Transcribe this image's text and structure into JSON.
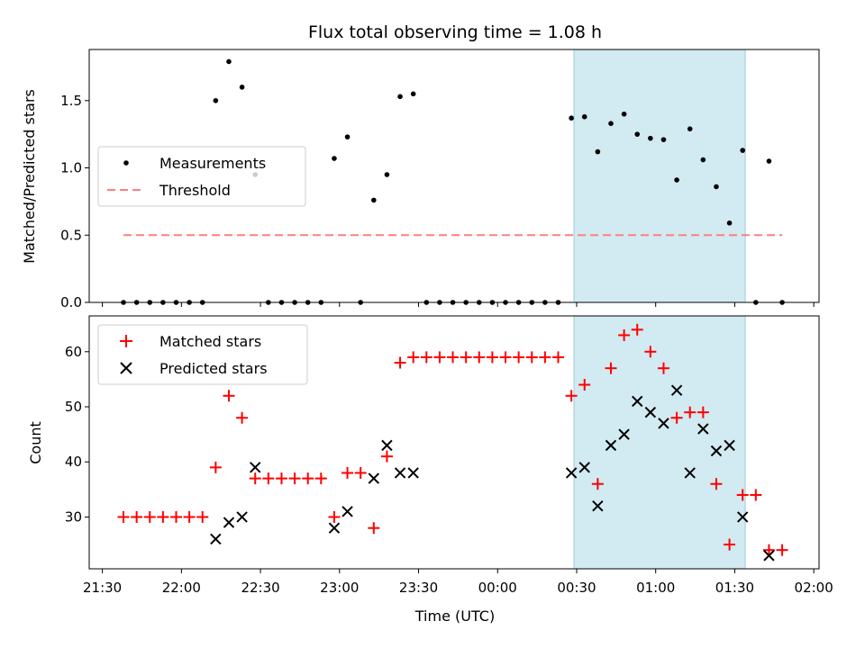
{
  "title": "Flux total observing time = 1.08 h",
  "colors": {
    "measurement": "#000000",
    "threshold": "#ff7f7f",
    "matched": "#ff0000",
    "predicted": "#000000",
    "shaded": "#add8e6"
  },
  "chart_data": [
    {
      "type": "scatter",
      "ylabel": "Matched/Predicted stars",
      "xlim": [
        "21:25",
        "02:02"
      ],
      "ylim": [
        0,
        1.88
      ],
      "yticks": [
        "0.0",
        "0.5",
        "1.0",
        "1.5"
      ],
      "shaded_x": [
        "00:29",
        "01:34"
      ],
      "legend_position": "center-left",
      "series": [
        {
          "name": "Measurements",
          "marker": "dot",
          "points": [
            [
              "21:38",
              0
            ],
            [
              "21:43",
              0
            ],
            [
              "21:48",
              0
            ],
            [
              "21:53",
              0
            ],
            [
              "21:58",
              0
            ],
            [
              "22:03",
              0
            ],
            [
              "22:08",
              0
            ],
            [
              "22:13",
              1.5
            ],
            [
              "22:18",
              1.79
            ],
            [
              "22:23",
              1.6
            ],
            [
              "22:28",
              0.95
            ],
            [
              "22:33",
              0
            ],
            [
              "22:38",
              0
            ],
            [
              "22:43",
              0
            ],
            [
              "22:48",
              0
            ],
            [
              "22:53",
              0
            ],
            [
              "22:58",
              1.07
            ],
            [
              "23:03",
              1.23
            ],
            [
              "23:08",
              0
            ],
            [
              "23:13",
              0.76
            ],
            [
              "23:18",
              0.95
            ],
            [
              "23:23",
              1.53
            ],
            [
              "23:28",
              1.55
            ],
            [
              "23:33",
              0
            ],
            [
              "23:38",
              0
            ],
            [
              "23:43",
              0
            ],
            [
              "23:48",
              0
            ],
            [
              "23:53",
              0
            ],
            [
              "23:58",
              0
            ],
            [
              "00:03",
              0
            ],
            [
              "00:08",
              0
            ],
            [
              "00:13",
              0
            ],
            [
              "00:18",
              0
            ],
            [
              "00:23",
              0
            ],
            [
              "00:28",
              1.37
            ],
            [
              "00:33",
              1.38
            ],
            [
              "00:38",
              1.12
            ],
            [
              "00:43",
              1.33
            ],
            [
              "00:48",
              1.4
            ],
            [
              "00:53",
              1.25
            ],
            [
              "00:58",
              1.22
            ],
            [
              "01:03",
              1.21
            ],
            [
              "01:08",
              0.91
            ],
            [
              "01:13",
              1.29
            ],
            [
              "01:18",
              1.06
            ],
            [
              "01:23",
              0.86
            ],
            [
              "01:28",
              0.59
            ],
            [
              "01:33",
              1.13
            ],
            [
              "01:38",
              0
            ],
            [
              "01:43",
              1.05
            ],
            [
              "01:48",
              0
            ]
          ]
        },
        {
          "name": "Threshold",
          "marker": "dashed-line",
          "points": [
            [
              "21:38",
              0.5
            ],
            [
              "01:48",
              0.5
            ]
          ]
        }
      ]
    },
    {
      "type": "scatter",
      "ylabel": "Count",
      "xlabel": "Time (UTC)",
      "xlim": [
        "21:25",
        "02:02"
      ],
      "ylim": [
        20.6,
        66.5
      ],
      "yticks": [
        "30",
        "40",
        "50",
        "60"
      ],
      "xticks": [
        "21:30",
        "22:00",
        "22:30",
        "23:00",
        "23:30",
        "00:00",
        "00:30",
        "01:00",
        "01:30",
        "02:00"
      ],
      "shaded_x": [
        "00:29",
        "01:34"
      ],
      "legend_position": "upper-left",
      "series": [
        {
          "name": "Matched stars",
          "marker": "plus",
          "points": [
            [
              "21:38",
              30
            ],
            [
              "21:43",
              30
            ],
            [
              "21:48",
              30
            ],
            [
              "21:53",
              30
            ],
            [
              "21:58",
              30
            ],
            [
              "22:03",
              30
            ],
            [
              "22:08",
              30
            ],
            [
              "22:13",
              39
            ],
            [
              "22:18",
              52
            ],
            [
              "22:23",
              48
            ],
            [
              "22:28",
              37
            ],
            [
              "22:33",
              37
            ],
            [
              "22:38",
              37
            ],
            [
              "22:43",
              37
            ],
            [
              "22:48",
              37
            ],
            [
              "22:53",
              37
            ],
            [
              "22:58",
              30
            ],
            [
              "23:03",
              38
            ],
            [
              "23:08",
              38
            ],
            [
              "23:13",
              28
            ],
            [
              "23:18",
              41
            ],
            [
              "23:23",
              58
            ],
            [
              "23:28",
              59
            ],
            [
              "23:33",
              59
            ],
            [
              "23:38",
              59
            ],
            [
              "23:43",
              59
            ],
            [
              "23:48",
              59
            ],
            [
              "23:53",
              59
            ],
            [
              "23:58",
              59
            ],
            [
              "00:03",
              59
            ],
            [
              "00:08",
              59
            ],
            [
              "00:13",
              59
            ],
            [
              "00:18",
              59
            ],
            [
              "00:23",
              59
            ],
            [
              "00:28",
              52
            ],
            [
              "00:33",
              54
            ],
            [
              "00:38",
              36
            ],
            [
              "00:43",
              57
            ],
            [
              "00:48",
              63
            ],
            [
              "00:53",
              64
            ],
            [
              "00:58",
              60
            ],
            [
              "01:03",
              57
            ],
            [
              "01:08",
              48
            ],
            [
              "01:13",
              49
            ],
            [
              "01:18",
              49
            ],
            [
              "01:23",
              36
            ],
            [
              "01:28",
              25
            ],
            [
              "01:33",
              34
            ],
            [
              "01:38",
              34
            ],
            [
              "01:43",
              24
            ],
            [
              "01:48",
              24
            ]
          ]
        },
        {
          "name": "Predicted stars",
          "marker": "x",
          "points": [
            [
              "22:13",
              26
            ],
            [
              "22:18",
              29
            ],
            [
              "22:23",
              30
            ],
            [
              "22:28",
              39
            ],
            [
              "22:58",
              28
            ],
            [
              "23:03",
              31
            ],
            [
              "23:13",
              37
            ],
            [
              "23:18",
              43
            ],
            [
              "23:23",
              38
            ],
            [
              "23:28",
              38
            ],
            [
              "00:28",
              38
            ],
            [
              "00:33",
              39
            ],
            [
              "00:38",
              32
            ],
            [
              "00:43",
              43
            ],
            [
              "00:48",
              45
            ],
            [
              "00:53",
              51
            ],
            [
              "00:58",
              49
            ],
            [
              "01:03",
              47
            ],
            [
              "01:08",
              53
            ],
            [
              "01:13",
              38
            ],
            [
              "01:18",
              46
            ],
            [
              "01:23",
              42
            ],
            [
              "01:28",
              43
            ],
            [
              "01:33",
              30
            ],
            [
              "01:43",
              23
            ]
          ]
        }
      ]
    }
  ]
}
